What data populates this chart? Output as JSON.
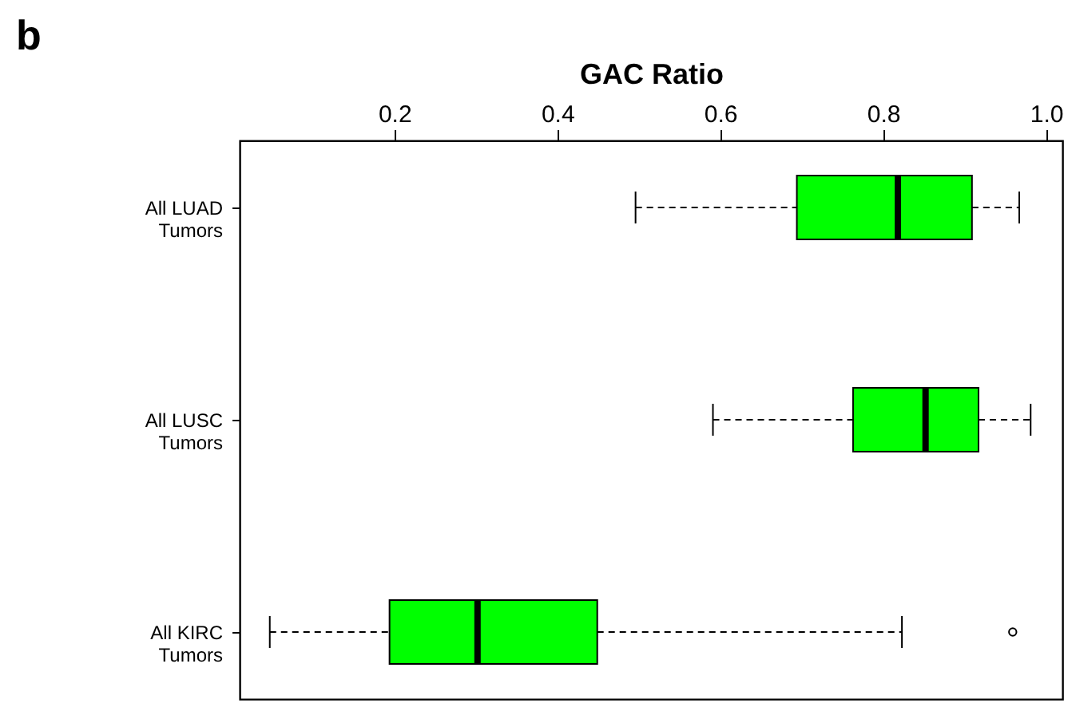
{
  "chart_data": {
    "type": "box",
    "xlabel": "GAC Ratio",
    "orientation": "horizontal",
    "categories": [
      "All LUAD\nTumors",
      "All LUSC\nTumors",
      "All KIRC\nTumors"
    ],
    "color": "#00ff00",
    "boxes": [
      {
        "low": 0.496,
        "q1": 0.694,
        "median": 0.818,
        "q3": 0.909,
        "high": 0.967
      },
      {
        "low": 0.591,
        "q1": 0.763,
        "median": 0.852,
        "q3": 0.917,
        "high": 0.981
      },
      {
        "low": 0.047,
        "q1": 0.194,
        "median": 0.302,
        "q3": 0.449,
        "high": 0.823,
        "outliers": [
          0.959
        ]
      }
    ],
    "xlim": [
      0.01,
      1.02
    ],
    "xticks": [
      0.2,
      0.4,
      0.6,
      0.8,
      {
        "value": 1,
        "label": "1.0"
      }
    ],
    "grid": false,
    "annotations": [
      "b"
    ]
  }
}
